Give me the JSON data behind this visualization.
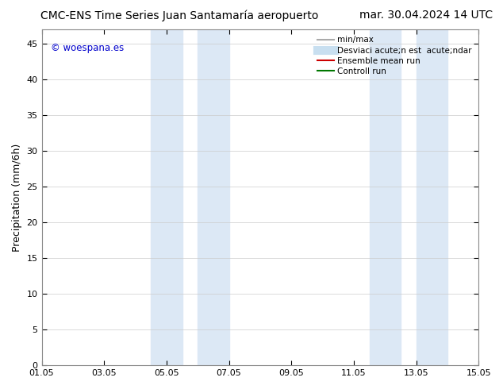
{
  "title_left": "CMC-ENS Time Series Juan Santamaría aeropuerto",
  "title_right": "mar. 30.04.2024 14 UTC",
  "ylabel": "Precipitation (mm/6h)",
  "xlabel": "",
  "xtick_labels": [
    "01.05",
    "03.05",
    "05.05",
    "07.05",
    "09.05",
    "11.05",
    "13.05",
    "15.05"
  ],
  "xtick_positions": [
    0,
    2,
    4,
    6,
    8,
    10,
    12,
    14
  ],
  "ylim": [
    0,
    47
  ],
  "ytick_positions": [
    0,
    5,
    10,
    15,
    20,
    25,
    30,
    35,
    40,
    45
  ],
  "ytick_labels": [
    "0",
    "5",
    "10",
    "15",
    "20",
    "25",
    "30",
    "35",
    "40",
    "45"
  ],
  "shaded_regions": [
    [
      3.5,
      4.5
    ],
    [
      5.0,
      6.0
    ],
    [
      10.5,
      11.5
    ],
    [
      12.0,
      13.0
    ]
  ],
  "shade_color": "#dce8f5",
  "background_color": "#ffffff",
  "plot_bg_color": "#ffffff",
  "watermark_text": "© woespana.es",
  "watermark_color": "#0000cc",
  "legend_entries": [
    {
      "label": "min/max",
      "color": "#aaaaaa",
      "lw": 1.5,
      "type": "line"
    },
    {
      "label": "Desviaci acute;n est  acute;ndar",
      "color": "#c8dff0",
      "lw": 8,
      "type": "line"
    },
    {
      "label": "Ensemble mean run",
      "color": "#cc0000",
      "lw": 1.5,
      "type": "line"
    },
    {
      "label": "Controll run",
      "color": "#007700",
      "lw": 1.5,
      "type": "line"
    }
  ],
  "title_fontsize": 10,
  "tick_fontsize": 8,
  "ylabel_fontsize": 9,
  "legend_fontsize": 7.5
}
